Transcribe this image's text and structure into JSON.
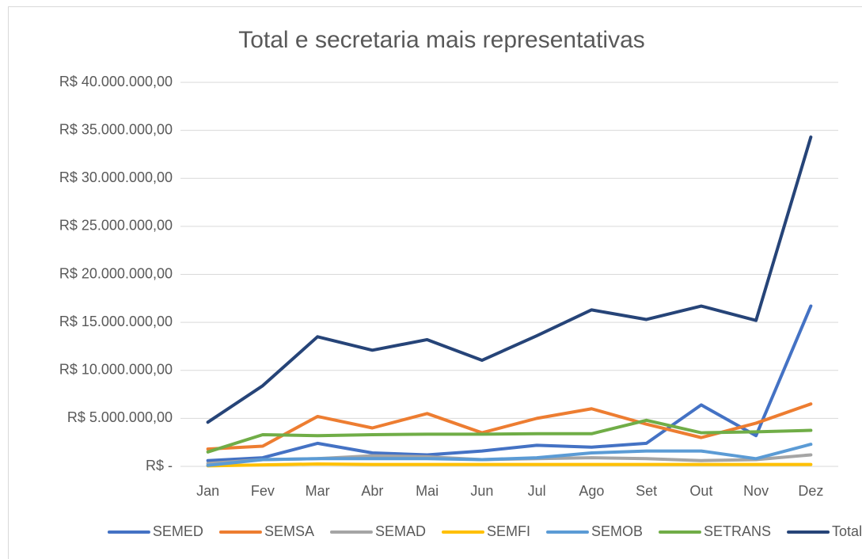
{
  "chart_data": {
    "type": "line",
    "title": "Total e secretaria mais representativas",
    "categories": [
      "Jan",
      "Fev",
      "Mar",
      "Abr",
      "Mai",
      "Jun",
      "Jul",
      "Ago",
      "Set",
      "Out",
      "Nov",
      "Dez"
    ],
    "series": [
      {
        "name": "SEMED",
        "color": "#4472c4",
        "values": [
          600000,
          900000,
          2400000,
          1400000,
          1200000,
          1600000,
          2200000,
          2000000,
          2400000,
          6400000,
          3200000,
          16700000
        ]
      },
      {
        "name": "SEMSA",
        "color": "#ed7d31",
        "values": [
          1800000,
          2100000,
          5200000,
          4000000,
          5500000,
          3500000,
          5000000,
          6000000,
          4400000,
          3000000,
          4500000,
          6500000
        ]
      },
      {
        "name": "SEMAD",
        "color": "#a5a5a5",
        "values": [
          300000,
          700000,
          800000,
          1100000,
          1000000,
          700000,
          800000,
          900000,
          800000,
          600000,
          700000,
          1200000
        ]
      },
      {
        "name": "SEMFI",
        "color": "#ffc000",
        "values": [
          50000,
          150000,
          250000,
          200000,
          200000,
          200000,
          200000,
          200000,
          200000,
          200000,
          200000,
          200000
        ]
      },
      {
        "name": "SEMOB",
        "color": "#5b9bd5",
        "values": [
          100000,
          700000,
          800000,
          800000,
          800000,
          700000,
          900000,
          1400000,
          1600000,
          1600000,
          800000,
          2300000
        ]
      },
      {
        "name": "SETRANS",
        "color": "#70ad47",
        "values": [
          1500000,
          3300000,
          3200000,
          3300000,
          3350000,
          3350000,
          3400000,
          3400000,
          4800000,
          3500000,
          3600000,
          3750000
        ]
      },
      {
        "name": "Total",
        "color": "#264478",
        "values": [
          4600000,
          8400000,
          13500000,
          12100000,
          13200000,
          11050000,
          13600000,
          16300000,
          15300000,
          16700000,
          15200000,
          34300000
        ]
      }
    ],
    "ylim": [
      0,
      40000000
    ],
    "yticks": [
      {
        "value": 0,
        "label": "R$ -"
      },
      {
        "value": 5000000,
        "label": "R$ 5.000.000,00"
      },
      {
        "value": 10000000,
        "label": "R$ 10.000.000,00"
      },
      {
        "value": 15000000,
        "label": "R$ 15.000.000,00"
      },
      {
        "value": 20000000,
        "label": "R$ 20.000.000,00"
      },
      {
        "value": 25000000,
        "label": "R$ 25.000.000,00"
      },
      {
        "value": 30000000,
        "label": "R$ 30.000.000,00"
      },
      {
        "value": 35000000,
        "label": "R$ 35.000.000,00"
      },
      {
        "value": 40000000,
        "label": "R$ 40.000.000,00"
      }
    ],
    "grid": true,
    "legend": "bottom"
  }
}
